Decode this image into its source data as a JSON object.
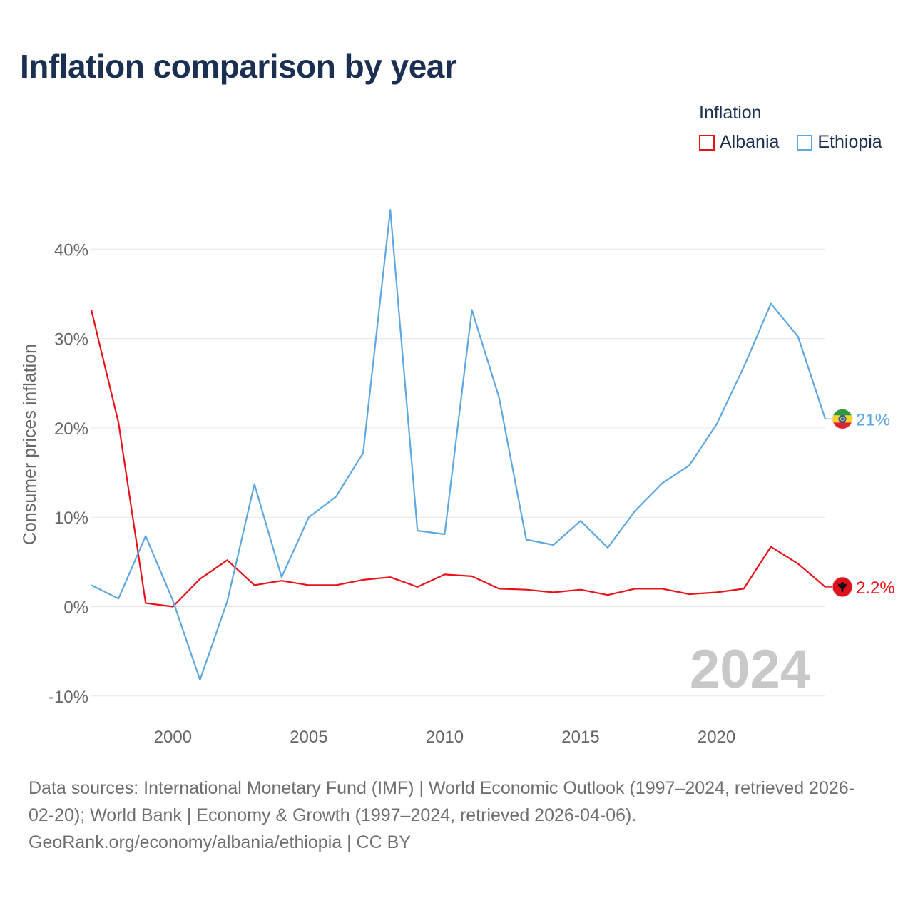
{
  "title": "Inflation comparison by year",
  "legend": {
    "title": "Inflation",
    "items": [
      {
        "name": "Albania",
        "color": "#e8131a"
      },
      {
        "name": "Ethiopia",
        "color": "#5ea7e0"
      }
    ]
  },
  "chart_data": {
    "type": "line",
    "ylabel": "Consumer prices inflation",
    "xlabel": "",
    "ylim": [
      -10,
      45
    ],
    "xlim": [
      1997,
      2024
    ],
    "yticks": [
      -10,
      0,
      10,
      20,
      30,
      40
    ],
    "ytick_labels": [
      "-10%",
      "0%",
      "10%",
      "20%",
      "30%",
      "40%"
    ],
    "xticks": [
      2000,
      2005,
      2010,
      2015,
      2020
    ],
    "xtick_labels": [
      "2000",
      "2005",
      "2010",
      "2015",
      "2020"
    ],
    "grid": true,
    "year_label": "2024",
    "x": [
      1997,
      1998,
      1999,
      2000,
      2001,
      2002,
      2003,
      2004,
      2005,
      2006,
      2007,
      2008,
      2009,
      2010,
      2011,
      2012,
      2013,
      2014,
      2015,
      2016,
      2017,
      2018,
      2019,
      2020,
      2021,
      2022,
      2023,
      2024
    ],
    "series": [
      {
        "name": "Albania",
        "color": "#e8131a",
        "end_label": "2.2%",
        "flag_icon": "albania-flag-icon",
        "values": [
          33.2,
          20.6,
          0.4,
          0.0,
          3.1,
          5.2,
          2.4,
          2.9,
          2.4,
          2.4,
          3.0,
          3.3,
          2.2,
          3.6,
          3.4,
          2.0,
          1.9,
          1.6,
          1.9,
          1.3,
          2.0,
          2.0,
          1.4,
          1.6,
          2.0,
          6.7,
          4.8,
          2.2
        ]
      },
      {
        "name": "Ethiopia",
        "color": "#5ea7e0",
        "end_label": "21%",
        "flag_icon": "ethiopia-flag-icon",
        "values": [
          2.4,
          0.9,
          7.9,
          0.7,
          -8.2,
          0.6,
          13.7,
          3.3,
          10.0,
          12.3,
          17.2,
          44.4,
          8.5,
          8.1,
          33.2,
          23.4,
          7.5,
          6.9,
          9.6,
          6.6,
          10.7,
          13.8,
          15.8,
          20.4,
          26.8,
          33.9,
          30.2,
          21.0
        ]
      }
    ]
  },
  "footer": {
    "line1": "Data sources: International Monetary Fund (IMF) | World Economic Outlook (1997–2024, retrieved 2026-",
    "line2": "02-20); World Bank | Economy & Growth (1997–2024, retrieved 2026-04-06).",
    "line3": "GeoRank.org/economy/albania/ethiopia | CC BY"
  }
}
